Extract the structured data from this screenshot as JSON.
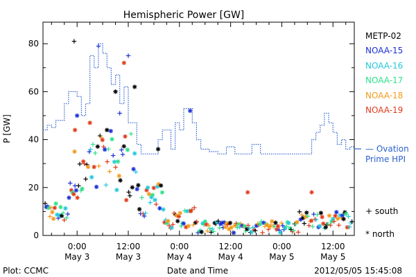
{
  "chart_data": {
    "type": "scatter",
    "title": "Hemispheric Power [GW]",
    "ylabel": "P [GW]",
    "xlabel": "Date and Time",
    "xlim": [
      -8,
      65
    ],
    "ylim": [
      0,
      89
    ],
    "x_ticks": [
      {
        "x": 0,
        "time": "0:00",
        "date": "May 3"
      },
      {
        "x": 12,
        "time": "12:00",
        "date": "May 3"
      },
      {
        "x": 24,
        "time": "0:00",
        "date": "May 4"
      },
      {
        "x": 36,
        "time": "12:00",
        "date": "May 4"
      },
      {
        "x": 48,
        "time": "0:00",
        "date": "May 5"
      },
      {
        "x": 60,
        "time": "12:00",
        "date": "May 5"
      }
    ],
    "y_ticks": [
      0,
      20,
      40,
      60,
      80
    ],
    "legend_position": "right",
    "series": [
      {
        "name": "METP-02",
        "color": "#000000"
      },
      {
        "name": "NOAA-15",
        "color": "#1a2fd6"
      },
      {
        "name": "NOAA-16",
        "color": "#22c8dc"
      },
      {
        "name": "NOAA-17",
        "color": "#2ee08a"
      },
      {
        "name": "NOAA-18",
        "color": "#f29a1a"
      },
      {
        "name": "NOAA-19",
        "color": "#e03a1a"
      }
    ],
    "ovation": {
      "label_line1": "— Ovation",
      "label_line2": "Prime HPI",
      "color": "#2a5fd0",
      "x": [
        -8,
        -7,
        -7,
        -6,
        -6,
        -5,
        -5,
        -3,
        -3,
        -2,
        -2,
        0,
        0,
        1,
        1,
        2,
        2,
        3,
        3,
        4,
        4,
        5,
        5,
        6,
        6,
        7,
        7,
        8,
        8,
        9,
        9,
        10,
        10,
        11,
        11,
        12,
        12,
        14,
        14,
        15,
        15,
        17,
        17,
        19,
        19,
        20,
        20,
        22,
        22,
        23,
        23,
        24,
        24,
        25,
        25,
        27,
        27,
        28,
        28,
        29,
        29,
        31,
        31,
        33,
        33,
        35,
        35,
        37,
        37,
        39,
        39,
        41,
        41,
        43,
        43,
        45,
        45,
        47,
        47,
        49,
        49,
        51,
        51,
        53,
        53,
        55,
        55,
        56,
        56,
        57,
        57,
        58,
        58,
        59,
        59,
        60,
        60,
        61,
        61,
        62,
        62,
        63,
        63,
        64,
        64,
        65
      ],
      "y": [
        44,
        44,
        46,
        46,
        45,
        45,
        48,
        48,
        55,
        55,
        60,
        60,
        58,
        58,
        50,
        50,
        55,
        55,
        75,
        75,
        70,
        70,
        80,
        80,
        76,
        76,
        70,
        70,
        63,
        63,
        67,
        67,
        55,
        55,
        62,
        62,
        47,
        47,
        38,
        38,
        34,
        34,
        34,
        34,
        40,
        40,
        44,
        44,
        36,
        36,
        47,
        47,
        44,
        44,
        53,
        53,
        47,
        47,
        40,
        40,
        36,
        36,
        35,
        35,
        34,
        34,
        37,
        37,
        34,
        34,
        34,
        34,
        38,
        38,
        34,
        34,
        34,
        34,
        34,
        34,
        34,
        34,
        34,
        34,
        34,
        34,
        40,
        40,
        43,
        43,
        46,
        46,
        51,
        51,
        47,
        47,
        43,
        43,
        38,
        38,
        40,
        40,
        36,
        36,
        37,
        37
      ]
    },
    "symbols_note": {
      "south": "+ south",
      "north": "* north"
    }
  },
  "footer": {
    "left": "Plot: CCMC",
    "right": "2012/05/05 15:45:08"
  }
}
